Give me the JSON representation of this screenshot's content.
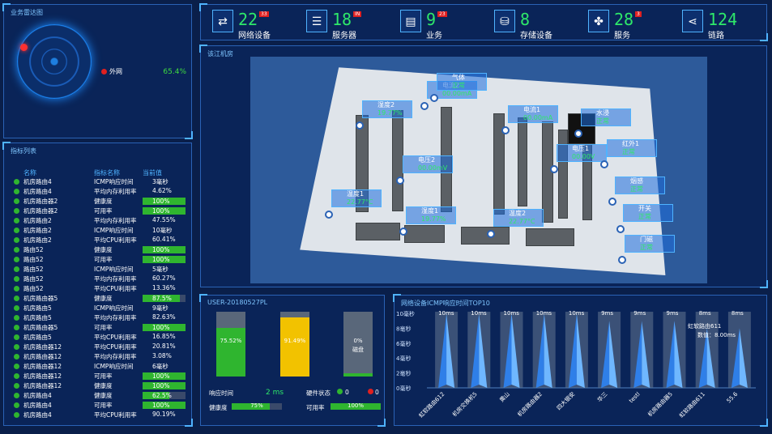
{
  "radar": {
    "title": "业务雷达图",
    "legend_label": "外网",
    "legend_value": "65.4%",
    "colors": {
      "alert": "#ff3030",
      "ok": "#3fdc3f"
    }
  },
  "metrics": {
    "title": "指标列表",
    "headers": [
      "名称",
      "指标名称",
      "当前值"
    ],
    "rows": [
      {
        "name": "机房路由4",
        "metric": "ICMP响应时间",
        "value": "3毫秒",
        "bar": null
      },
      {
        "name": "机房路由4",
        "metric": "平均内存利用率",
        "value": "4.62%",
        "bar": null
      },
      {
        "name": "机房路由器2",
        "metric": "健康度",
        "value": "100%",
        "bar": 1.0
      },
      {
        "name": "机房路由器2",
        "metric": "可用率",
        "value": "100%",
        "bar": 1.0
      },
      {
        "name": "机房路由2",
        "metric": "平均内存利用率",
        "value": "47.55%",
        "bar": null
      },
      {
        "name": "机房路由2",
        "metric": "ICMP响应时间",
        "value": "10毫秒",
        "bar": null
      },
      {
        "name": "机房路由2",
        "metric": "平均CPU利用率",
        "value": "60.41%",
        "bar": null
      },
      {
        "name": "路由52",
        "metric": "健康度",
        "value": "100%",
        "bar": 1.0
      },
      {
        "name": "路由52",
        "metric": "可用率",
        "value": "100%",
        "bar": 1.0
      },
      {
        "name": "路由52",
        "metric": "ICMP响应时间",
        "value": "5毫秒",
        "bar": null
      },
      {
        "name": "路由52",
        "metric": "平均内存利用率",
        "value": "60.27%",
        "bar": null
      },
      {
        "name": "路由52",
        "metric": "平均CPU利用率",
        "value": "13.36%",
        "bar": null
      },
      {
        "name": "机房路由器5",
        "metric": "健康度",
        "value": "87.5%",
        "bar": 0.875
      },
      {
        "name": "机房路由5",
        "metric": "ICMP响应时间",
        "value": "9毫秒",
        "bar": null
      },
      {
        "name": "机房路由5",
        "metric": "平均内存利用率",
        "value": "82.63%",
        "bar": null
      },
      {
        "name": "机房路由器5",
        "metric": "可用率",
        "value": "100%",
        "bar": 1.0
      },
      {
        "name": "机房路由5",
        "metric": "平均CPU利用率",
        "value": "16.85%",
        "bar": null
      },
      {
        "name": "机房路由器12",
        "metric": "平均CPU利用率",
        "value": "20.81%",
        "bar": null
      },
      {
        "name": "机房路由器12",
        "metric": "平均内存利用率",
        "value": "3.08%",
        "bar": null
      },
      {
        "name": "机房路由器12",
        "metric": "ICMP响应时间",
        "value": "6毫秒",
        "bar": null
      },
      {
        "name": "机房路由器12",
        "metric": "可用率",
        "value": "100%",
        "bar": 1.0
      },
      {
        "name": "机房路由器12",
        "metric": "健康度",
        "value": "100%",
        "bar": 1.0
      },
      {
        "name": "机房路由4",
        "metric": "健康度",
        "value": "62.5%",
        "bar": 0.625
      },
      {
        "name": "机房路由4",
        "metric": "可用率",
        "value": "100%",
        "bar": 1.0
      },
      {
        "name": "机房路由4",
        "metric": "平均CPU利用率",
        "value": "90.19%",
        "bar": null
      }
    ]
  },
  "stats": [
    {
      "icon": "router-icon",
      "glyph": "⇄",
      "num": "22",
      "badge": "33",
      "label": "网络设备"
    },
    {
      "icon": "server-icon",
      "glyph": "☰",
      "num": "18",
      "badge": "IN",
      "label": "服务器"
    },
    {
      "icon": "business-icon",
      "glyph": "▤",
      "num": "9",
      "badge": "23",
      "label": "业务"
    },
    {
      "icon": "storage-icon",
      "glyph": "⛁",
      "num": "8",
      "badge": "",
      "label": "存储设备"
    },
    {
      "icon": "service-icon",
      "glyph": "✤",
      "num": "28",
      "badge": "3",
      "label": "服务"
    },
    {
      "icon": "link-icon",
      "glyph": "⋖",
      "num": "124",
      "badge": "",
      "label": "链路"
    }
  ],
  "room": {
    "title": "该江机房",
    "tags": [
      {
        "label": "湿度2",
        "value": "19.77%"
      },
      {
        "label": "电流2",
        "value": "00.00mA"
      },
      {
        "label": "电流1",
        "value": "00.00mA"
      },
      {
        "label": "水浸",
        "value": "正常"
      },
      {
        "label": "电压1",
        "value": "00.00V"
      },
      {
        "label": "红外1",
        "value": "正常"
      },
      {
        "label": "电压2",
        "value": "00.00mV"
      },
      {
        "label": "烟感",
        "value": "正常"
      },
      {
        "label": "温度1",
        "value": "22.77°C"
      },
      {
        "label": "湿度1",
        "value": "19.77%"
      },
      {
        "label": "温度2",
        "value": "22.77°C"
      },
      {
        "label": "开关",
        "value": "正常"
      },
      {
        "label": "门磁",
        "value": "正常"
      },
      {
        "label": "气体",
        "value": "正常"
      }
    ]
  },
  "device": {
    "title": "USER-20180527PL",
    "tanks": [
      {
        "pct": "75.52%",
        "level": 0.7552,
        "color": "#2fb52f",
        "caption": ""
      },
      {
        "pct": "91.49%",
        "level": 0.9149,
        "color": "#f2c200",
        "caption": ""
      },
      {
        "pct": "0%",
        "level": 0.05,
        "color": "#2fb52f",
        "caption": "磁盘"
      }
    ],
    "response_label": "响应时间",
    "response_value": "2 ms",
    "hw_label": "硬件状态",
    "hw_ok": "0",
    "hw_err": "0",
    "health_label": "健康度",
    "health_value": "75%",
    "health_level": 0.75,
    "avail_label": "可用率",
    "avail_value": "100%",
    "avail_level": 1.0
  },
  "chart_data": {
    "type": "bar",
    "title": "网络设备ICMP响应时间TOP10",
    "categories": [
      "虹软路由612",
      "机房交换机5",
      "黄山",
      "机房路由器2",
      "四大银安",
      "华三",
      "testl",
      "机房路由器5",
      "虹软路由611",
      "55.6"
    ],
    "values": [
      10,
      10,
      10,
      10,
      10,
      9,
      9,
      9,
      8,
      8
    ],
    "data_labels": [
      "10ms",
      "10ms",
      "10ms",
      "10ms",
      "10ms",
      "9ms",
      "9ms",
      "9ms",
      "8ms",
      "8ms"
    ],
    "y_ticks": [
      "0毫秒",
      "2毫秒",
      "4毫秒",
      "6毫秒",
      "8毫秒",
      "10毫秒"
    ],
    "ylim": [
      0,
      10
    ],
    "tooltip": {
      "name": "虹软路由611",
      "label": "数值：",
      "value": "8.00ms"
    },
    "colors": {
      "bar": "#2f7fe8",
      "bar_light": "#6fb7ff",
      "bg": "#5b6f8c"
    }
  }
}
